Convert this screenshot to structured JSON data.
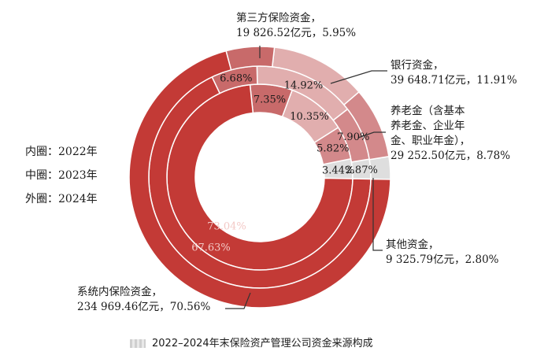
{
  "chart_data": {
    "type": "pie",
    "variant": "nested-donut",
    "title": "2022–2024年末保险资产管理公司资金来源构成",
    "rings": [
      {
        "name": "内圈：2022年",
        "values": [
          73.04,
          7.35,
          10.35,
          5.82,
          3.44
        ]
      },
      {
        "name": "中圈：2023年",
        "values": [
          67.63,
          6.68,
          14.92,
          7.9,
          2.87
        ]
      },
      {
        "name": "外圈：2024年",
        "values": [
          70.56,
          5.95,
          11.91,
          8.78,
          2.8
        ]
      }
    ],
    "slice_labels": [
      [
        "73.04%",
        "7.35%",
        "10.35%",
        "5.82%",
        "3.44%"
      ],
      [
        "67.63%",
        "6.68%",
        "14.92%",
        "7.90%",
        "2.87%"
      ]
    ],
    "categories": [
      {
        "key": "system",
        "lines": [
          "系统内保险资金，",
          "234 969.46亿元，70.56%"
        ],
        "color": "#c33a36"
      },
      {
        "key": "third",
        "lines": [
          "第三方保险资金，",
          "19 826.52亿元，5.95%"
        ],
        "color": "#c86a6a"
      },
      {
        "key": "bank",
        "lines": [
          "银行资金，",
          "39 648.71亿元，11.91%"
        ],
        "color": "#e1aeae"
      },
      {
        "key": "pension",
        "lines": [
          "养老金（含基本",
          "养老金、企业年",
          "金、职业年金），",
          "29 252.50亿元，8.78%"
        ],
        "color": "#d3898b"
      },
      {
        "key": "other",
        "lines": [
          "其他资金，",
          "9 325.79亿元，2.80%"
        ],
        "color": "#dedede"
      }
    ],
    "ring_legend": [
      "内圈：2022年",
      "中圈：2023年",
      "外圈：2024年"
    ]
  }
}
